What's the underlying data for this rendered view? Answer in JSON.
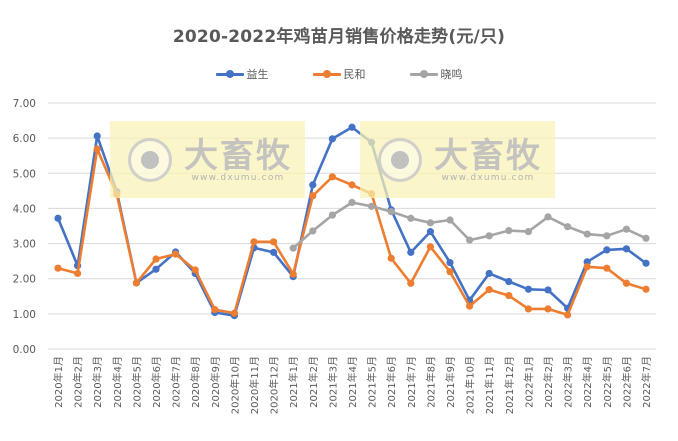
{
  "chart_data": {
    "type": "line",
    "title": "2020-2022年鸡苗月销售价格走势(元/只)",
    "xlabel": "",
    "ylabel": "",
    "ylim": [
      0,
      7
    ],
    "yticks": [
      "0.00",
      "1.00",
      "2.00",
      "3.00",
      "4.00",
      "5.00",
      "6.00",
      "7.00"
    ],
    "grid": true,
    "legend_position": "top",
    "categories": [
      "2020年1月",
      "2020年2月",
      "2020年3月",
      "2020年4月",
      "2020年5月",
      "2020年6月",
      "2020年7月",
      "2020年8月",
      "2020年9月",
      "2020年10月",
      "2020年11月",
      "2020年12月",
      "2021年1月",
      "2021年2月",
      "2021年3月",
      "2021年4月",
      "2021年5月",
      "2021年6月",
      "2021年7月",
      "2021年8月",
      "2021年9月",
      "2021年10月",
      "2021年11月",
      "2021年12月",
      "2022年1月",
      "2022年2月",
      "2022年3月",
      "2022年4月",
      "2022年5月",
      "2022年6月",
      "2022年7月"
    ],
    "series": [
      {
        "name": "益生",
        "color": "#4472C4",
        "values": [
          3.72,
          2.37,
          6.06,
          4.48,
          1.88,
          2.27,
          2.76,
          2.15,
          1.04,
          0.95,
          2.88,
          2.75,
          2.06,
          4.67,
          5.98,
          6.31,
          5.88,
          3.96,
          2.75,
          3.34,
          2.46,
          1.39,
          2.15,
          1.92,
          1.7,
          1.68,
          1.16,
          2.48,
          2.82,
          2.85,
          2.44
        ]
      },
      {
        "name": "民和",
        "color": "#ED7D31",
        "values": [
          2.3,
          2.15,
          5.69,
          4.4,
          1.88,
          2.56,
          2.7,
          2.25,
          1.12,
          1.02,
          3.05,
          3.05,
          2.13,
          4.36,
          4.9,
          4.67,
          4.42,
          2.58,
          1.87,
          2.91,
          2.2,
          1.22,
          1.69,
          1.52,
          1.14,
          1.14,
          0.97,
          2.34,
          2.3,
          1.87,
          1.7
        ]
      },
      {
        "name": "晓鸣",
        "color": "#A5A5A5",
        "values": [
          null,
          null,
          null,
          null,
          null,
          null,
          null,
          null,
          null,
          null,
          null,
          null,
          2.87,
          3.36,
          3.81,
          4.17,
          4.06,
          3.91,
          3.72,
          3.59,
          3.67,
          3.1,
          3.22,
          3.37,
          3.34,
          3.76,
          3.48,
          3.27,
          3.22,
          3.41,
          3.15
        ]
      }
    ]
  },
  "legend": [
    {
      "label": "益生",
      "color": "#4472C4"
    },
    {
      "label": "民和",
      "color": "#ED7D31"
    },
    {
      "label": "晓鸣",
      "color": "#A5A5A5"
    }
  ],
  "watermark": {
    "brand": "大畜牧",
    "url": "www.dxumu.com",
    "icon": "eye-circle-logo-icon"
  }
}
